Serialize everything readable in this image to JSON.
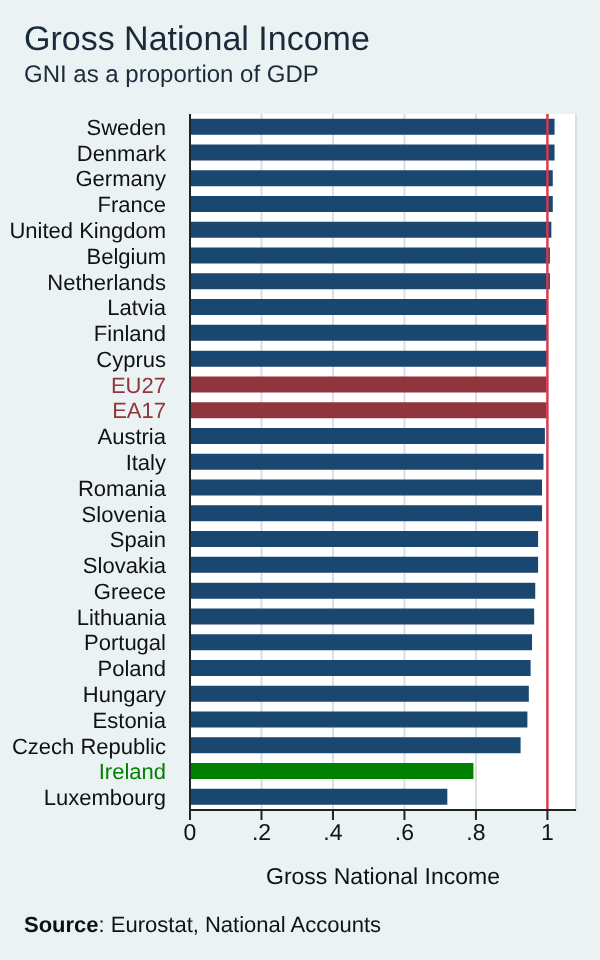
{
  "chart_data": {
    "type": "bar",
    "orientation": "horizontal",
    "title": "Gross National Income",
    "subtitle": "GNI as a proportion of GDP",
    "xlabel": "Gross National Income",
    "categories": [
      "Sweden",
      "Denmark",
      "Germany",
      "France",
      "United Kingdom",
      "Belgium",
      "Netherlands",
      "Latvia",
      "Finland",
      "Cyprus",
      "EU27",
      "EA17",
      "Austria",
      "Italy",
      "Romania",
      "Slovenia",
      "Spain",
      "Slovakia",
      "Greece",
      "Lithuania",
      "Portugal",
      "Poland",
      "Hungary",
      "Estonia",
      "Czech Republic",
      "Ireland",
      "Luxembourg"
    ],
    "values": [
      1.02,
      1.02,
      1.015,
      1.015,
      1.011,
      1.007,
      1.007,
      1.0,
      1.0,
      1.0,
      0.998,
      0.998,
      0.993,
      0.989,
      0.985,
      0.985,
      0.974,
      0.974,
      0.966,
      0.963,
      0.957,
      0.953,
      0.948,
      0.944,
      0.925,
      0.793,
      0.72
    ],
    "colors": [
      "#1a476f",
      "#1a476f",
      "#1a476f",
      "#1a476f",
      "#1a476f",
      "#1a476f",
      "#1a476f",
      "#1a476f",
      "#1a476f",
      "#1a476f",
      "#90353b",
      "#90353b",
      "#1a476f",
      "#1a476f",
      "#1a476f",
      "#1a476f",
      "#1a476f",
      "#1a476f",
      "#1a476f",
      "#1a476f",
      "#1a476f",
      "#1a476f",
      "#1a476f",
      "#1a476f",
      "#1a476f",
      "#008000",
      "#1a476f"
    ],
    "xlim": [
      0,
      1.08
    ],
    "xticks": [
      0,
      {
        "value": 0.2,
        "label": ".2"
      },
      {
        "value": 0.4,
        "label": ".4"
      },
      {
        "value": 0.6,
        "label": ".6"
      },
      {
        "value": 0.8,
        "label": ".8"
      },
      1
    ],
    "ref_lines": [
      {
        "axis": "x",
        "value": 1,
        "color": "#e0384b"
      }
    ],
    "grid": "x",
    "annotations": [
      "Source: Eurostat, National Accounts"
    ]
  }
}
